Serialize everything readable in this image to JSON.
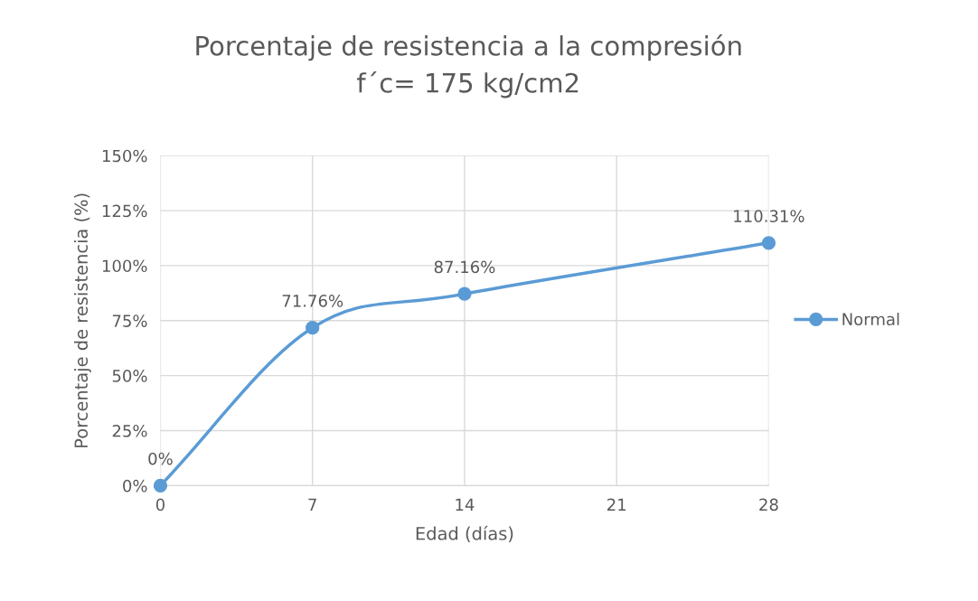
{
  "chart_data": {
    "type": "line",
    "title": "Porcentaje de resistencia a la compresión\nf´c= 175 kg/cm2",
    "xlabel": "Edad (días)",
    "ylabel": "Porcentaje de resistencia (%)",
    "x": [
      0,
      7,
      14,
      28
    ],
    "series": [
      {
        "name": "Normal",
        "color": "#5b9bd5",
        "values": [
          0,
          71.76,
          87.16,
          110.31
        ],
        "value_labels": [
          "0%",
          "71.76%",
          "87.16%",
          "110.31%"
        ]
      }
    ],
    "xlim": [
      0,
      28
    ],
    "xticks": [
      0,
      7,
      14,
      21,
      28
    ],
    "ylim": [
      0,
      150
    ],
    "yticks": [
      {
        "value": 0,
        "label": "0%"
      },
      {
        "value": 25,
        "label": "25%"
      },
      {
        "value": 50,
        "label": "50%"
      },
      {
        "value": 75,
        "label": "75%"
      },
      {
        "value": 100,
        "label": "100%"
      },
      {
        "value": 125,
        "label": "125%"
      },
      {
        "value": 150,
        "label": "150%"
      }
    ],
    "grid": true,
    "legend": "right",
    "marker": "circle",
    "line_style": "solid"
  }
}
